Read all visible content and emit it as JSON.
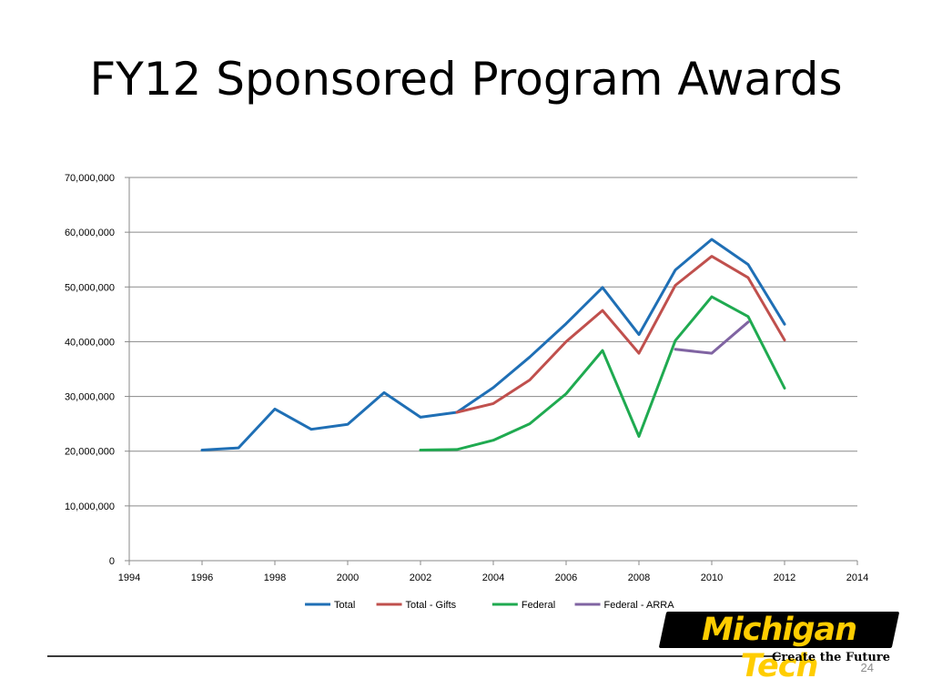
{
  "slide": {
    "title": "FY12 Sponsored Program Awards",
    "page_number": "24"
  },
  "logo": {
    "name": "Michigan Tech",
    "tagline": "Create the Future",
    "colors": {
      "primary": "#ffcd00",
      "secondary": "#000000"
    }
  },
  "chart_data": {
    "type": "line",
    "title": "",
    "xlabel": "",
    "ylabel": "",
    "xlim": [
      1994,
      2014
    ],
    "ylim": [
      0,
      70000000
    ],
    "x_ticks": [
      1994,
      1996,
      1998,
      2000,
      2002,
      2004,
      2006,
      2008,
      2010,
      2012,
      2014
    ],
    "x_tick_labels": [
      "1994",
      "1996",
      "1998",
      "2000",
      "2002",
      "2004",
      "2006",
      "2008",
      "2010",
      "2012",
      "2014"
    ],
    "y_ticks": [
      0,
      10000000,
      20000000,
      30000000,
      40000000,
      50000000,
      60000000,
      70000000
    ],
    "y_tick_labels": [
      "0",
      "10,000,000",
      "20,000,000",
      "30,000,000",
      "40,000,000",
      "50,000,000",
      "60,000,000",
      "70,000,000"
    ],
    "grid": "horizontal",
    "legend": "bottom",
    "series": [
      {
        "name": "Total",
        "color": "#1f6fb5",
        "x": [
          1996,
          1997,
          1998,
          1999,
          2000,
          2001,
          2002,
          2003,
          2004,
          2005,
          2006,
          2007,
          2008,
          2009,
          2010,
          2011,
          2012
        ],
        "y": [
          20200000,
          20600000,
          27700000,
          24000000,
          24900000,
          30700000,
          26200000,
          27100000,
          31600000,
          37200000,
          43300000,
          49900000,
          41300000,
          53100000,
          58700000,
          54100000,
          43200000
        ]
      },
      {
        "name": "Total - Gifts",
        "color": "#c0504d",
        "x": [
          2003,
          2004,
          2005,
          2006,
          2007,
          2008,
          2009,
          2010,
          2011,
          2012
        ],
        "y": [
          27100000,
          28700000,
          33000000,
          40000000,
          45700000,
          37900000,
          50300000,
          55600000,
          51700000,
          40300000
        ]
      },
      {
        "name": "Federal",
        "color": "#1faa50",
        "x": [
          2002,
          2003,
          2004,
          2005,
          2006,
          2007,
          2008,
          2009,
          2010,
          2011,
          2012
        ],
        "y": [
          20200000,
          20300000,
          22000000,
          25000000,
          30500000,
          38400000,
          22700000,
          40200000,
          48200000,
          44600000,
          31500000
        ]
      },
      {
        "name": "Federal - ARRA",
        "color": "#8064a2",
        "x": [
          2009,
          2010,
          2011
        ],
        "y": [
          38600000,
          37900000,
          43600000
        ]
      }
    ]
  }
}
